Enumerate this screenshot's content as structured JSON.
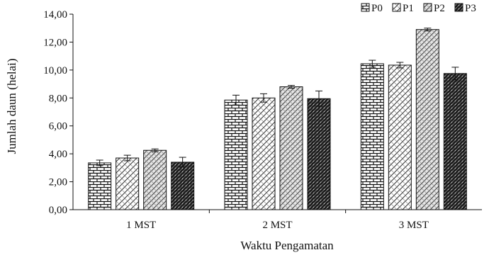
{
  "chart_data": {
    "type": "bar",
    "title": "",
    "xlabel": "Waktu Pengamatan",
    "ylabel": "Jumlah daun (helai)",
    "categories": [
      "1 MST",
      "2 MST",
      "3 MST"
    ],
    "ylim": [
      0,
      14
    ],
    "yticks": [
      "0,00",
      "2,00",
      "4,00",
      "6,00",
      "8,00",
      "10,00",
      "12,00",
      "14,00"
    ],
    "grid": false,
    "legend_position": "top-right",
    "error_bars": true,
    "series": [
      {
        "name": "P0",
        "values": [
          3.35,
          7.85,
          10.45
        ],
        "errors": [
          0.2,
          0.35,
          0.25
        ],
        "pattern": "brick"
      },
      {
        "name": "P1",
        "values": [
          3.7,
          8.0,
          10.35
        ],
        "errors": [
          0.2,
          0.3,
          0.2
        ],
        "pattern": "zigzag"
      },
      {
        "name": "P2",
        "values": [
          4.25,
          8.8,
          12.9
        ],
        "errors": [
          0.1,
          0.1,
          0.1
        ],
        "pattern": "wave"
      },
      {
        "name": "P3",
        "values": [
          3.4,
          7.95,
          9.75
        ],
        "errors": [
          0.35,
          0.55,
          0.45
        ],
        "pattern": "dark"
      }
    ]
  }
}
